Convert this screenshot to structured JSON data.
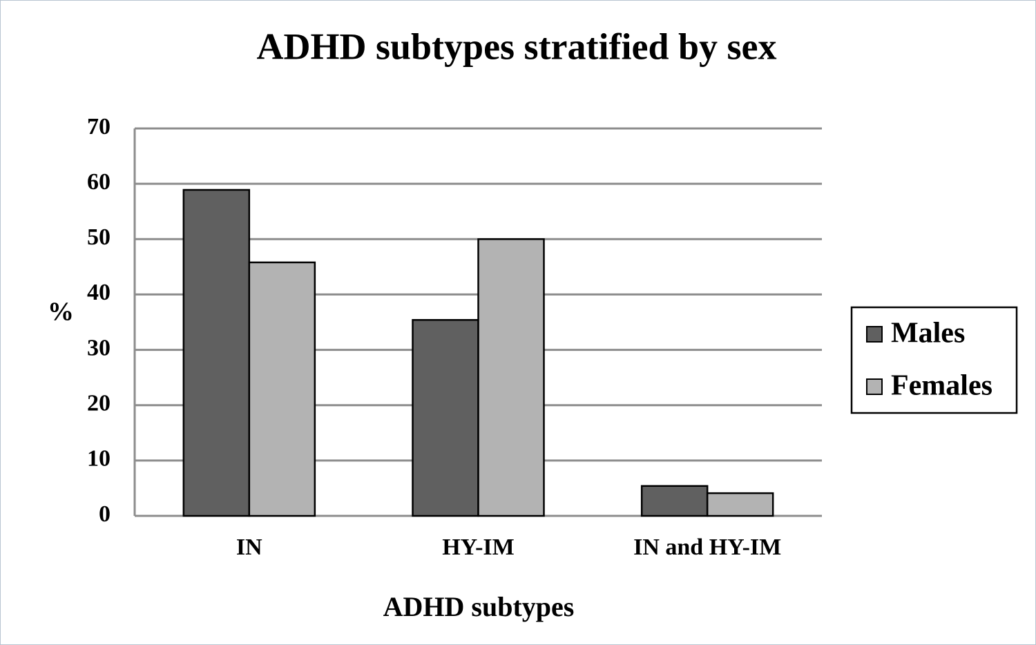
{
  "chart_data": {
    "type": "bar",
    "title": "ADHD subtypes stratified by sex",
    "x_label": "ADHD subtypes",
    "y_label": "%",
    "categories": [
      "IN",
      "HY-IM",
      "IN and HY-IM"
    ],
    "series": [
      {
        "name": "Males",
        "color": "#606060",
        "values": [
          58.9,
          35.4,
          5.4
        ]
      },
      {
        "name": "Females",
        "color": "#b3b3b3",
        "values": [
          45.8,
          50.0,
          4.1
        ]
      }
    ],
    "ylim": [
      0,
      70
    ],
    "yticks": [
      0,
      10,
      20,
      30,
      40,
      50,
      60,
      70
    ],
    "grid": true,
    "legend": "right"
  }
}
